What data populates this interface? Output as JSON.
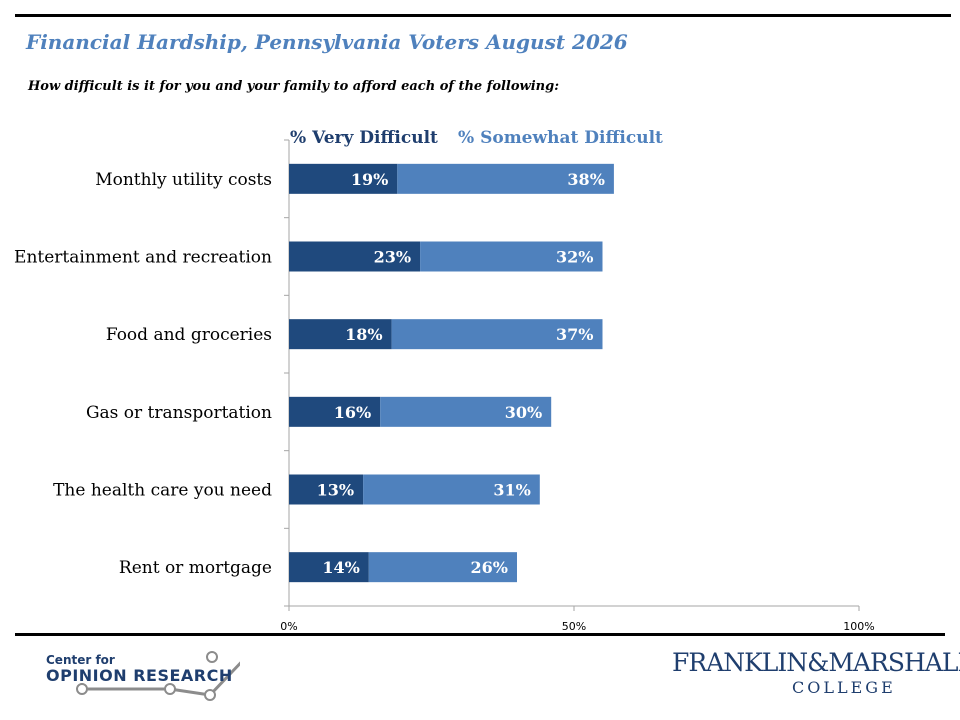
{
  "title": "Financial Hardship, Pennsylvania Voters August 2026",
  "subtitle": "How difficult is it for you and your family to afford each of the following:",
  "colors": {
    "very": "#1f497d",
    "somewhat": "#4f81bd",
    "title": "#4f81bd"
  },
  "chart_data": {
    "type": "bar",
    "orientation": "horizontal",
    "stacked": true,
    "categories": [
      "Monthly utility costs",
      "Entertainment and recreation",
      "Food and groceries",
      "Gas or transportation",
      "The health care you need",
      "Rent or mortgage"
    ],
    "series": [
      {
        "name": "% Very Difficult",
        "values": [
          19,
          23,
          18,
          16,
          13,
          14
        ],
        "labels": [
          "19%",
          "23%",
          "18%",
          "16%",
          "13%",
          "14%"
        ]
      },
      {
        "name": "% Somewhat Difficult",
        "values": [
          38,
          32,
          37,
          30,
          31,
          26
        ],
        "labels": [
          "38%",
          "32%",
          "37%",
          "30%",
          "31%",
          "26%"
        ]
      }
    ],
    "xlim": [
      0,
      100
    ],
    "xticks": [
      0,
      50,
      100
    ],
    "xtick_labels": [
      "0%",
      "50%",
      "100%"
    ],
    "legend_position": "top",
    "grid": false
  },
  "logos": {
    "left_small": "Center for",
    "left_big": "OPINION RESEARCH",
    "right_main": "FRANKLIN&MARSHALL",
    "right_sub": "COLLEGE"
  }
}
